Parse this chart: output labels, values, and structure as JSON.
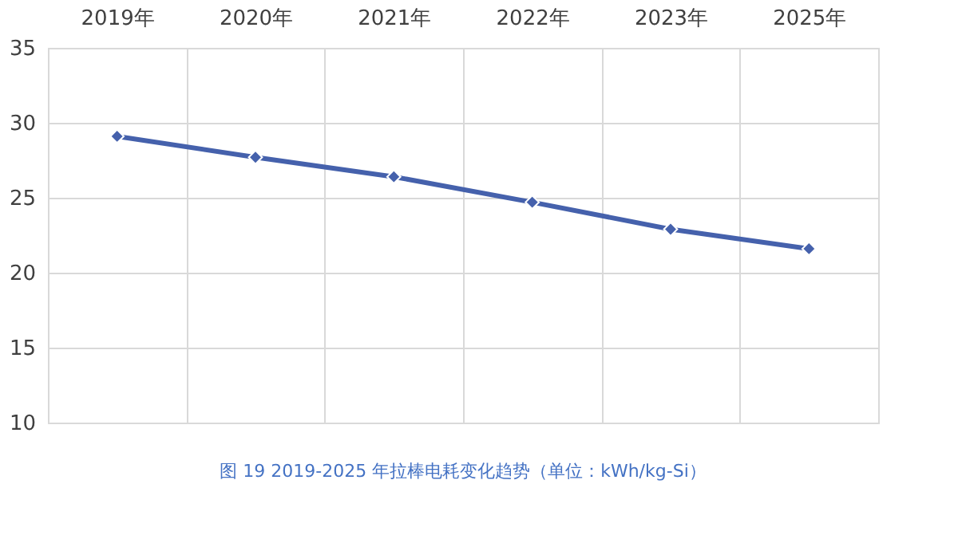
{
  "chart_data": {
    "type": "line",
    "title": "图 19   2019-2025 年拉棒电耗变化趋势（单位：kWh/kg-Si）",
    "categories": [
      "2019年",
      "2020年",
      "2021年",
      "2022年",
      "2023年",
      "2025年"
    ],
    "series": [
      {
        "color": "#4561ac",
        "values": [
          29.1,
          27.7,
          26.4,
          24.7,
          22.9,
          21.6
        ]
      }
    ],
    "ylim": [
      10,
      35
    ],
    "yticks": [
      10,
      15,
      20,
      25,
      30,
      35
    ],
    "grid": true,
    "marker": "diamond",
    "line_style": "solid",
    "legend": false
  }
}
